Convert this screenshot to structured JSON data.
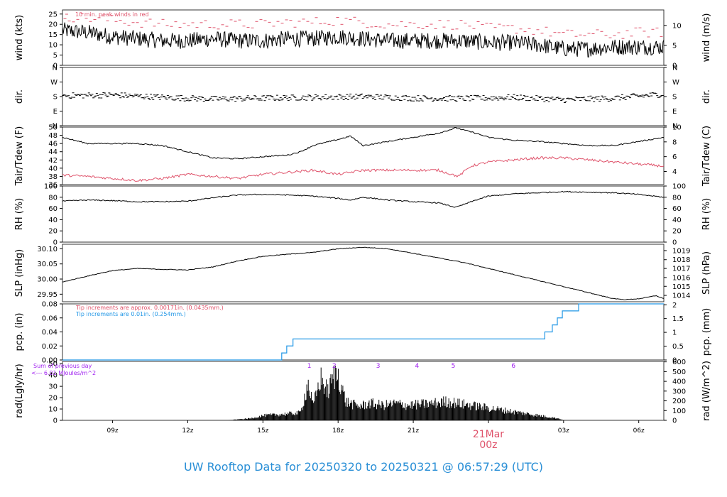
{
  "footer": "UW Rooftop Data for 20250320  to  20250321 @ 06:57:29  (UTC)",
  "colors": {
    "axis": "#333333",
    "series": "#000000",
    "red": "#df536b",
    "blue": "#2297e6",
    "purple": "#a020f0"
  },
  "time_axis": {
    "range": [
      7.0,
      31.0
    ],
    "ticks": [
      {
        "v": 9,
        "label": "09z"
      },
      {
        "v": 12,
        "label": "12z"
      },
      {
        "v": 15,
        "label": "15z"
      },
      {
        "v": 18,
        "label": "18z"
      },
      {
        "v": 21,
        "label": "21z"
      },
      {
        "v": 24,
        "label": ""
      },
      {
        "v": 27,
        "label": "03z"
      },
      {
        "v": 30,
        "label": "06z"
      }
    ],
    "date_label": {
      "v": 24,
      "line1": "21Mar",
      "line2": "00z"
    }
  },
  "chart_data": [
    {
      "id": "wind",
      "type": "line",
      "ylabel": "wind (kts)",
      "ylabel_right": "wind (m/s)",
      "ylim": [
        0,
        27
      ],
      "yticks": [
        0,
        5,
        10,
        15,
        20,
        25
      ],
      "yticks_right": [
        {
          "v": 0,
          "label": "0"
        },
        {
          "v": 9.72,
          "label": "5"
        },
        {
          "v": 19.44,
          "label": "10"
        }
      ],
      "annotation": "10 min. peak winds in red",
      "series": {
        "x": [
          7.0,
          8.0,
          9.0,
          10.0,
          11.0,
          12.0,
          13.0,
          14.0,
          15.0,
          16.0,
          17.0,
          18.0,
          19.0,
          20.0,
          21.0,
          22.0,
          23.0,
          24.0,
          25.0,
          26.0,
          27.0,
          28.0,
          29.0,
          30.0,
          31.0
        ],
        "y": [
          17,
          16,
          14,
          13,
          12,
          12,
          13,
          12,
          12,
          13,
          13,
          14,
          13,
          12,
          12,
          12,
          12,
          11,
          11,
          10,
          8,
          8,
          9,
          9,
          9
        ],
        "noise": 4
      },
      "peak": {
        "x": [
          7.0,
          8.0,
          9.0,
          10.0,
          11.0,
          12.0,
          13.0,
          14.0,
          15.0,
          16.0,
          17.0,
          18.0,
          19.0,
          20.0,
          21.0,
          22.0,
          23.0,
          24.0,
          25.0,
          26.0,
          27.0,
          28.0,
          29.0,
          30.0,
          31.0
        ],
        "y": [
          24,
          23,
          22,
          21,
          20,
          20,
          20,
          20,
          20,
          21,
          21,
          22,
          21,
          20,
          20,
          20,
          20,
          18,
          18,
          17,
          15,
          15,
          15,
          16,
          16
        ]
      }
    },
    {
      "id": "dir",
      "type": "scatter",
      "ylabel": "dir.",
      "ylabel_right": "dir.",
      "ylim": [
        0,
        360
      ],
      "ytick_labels": [
        {
          "v": 0,
          "label": "N"
        },
        {
          "v": 90,
          "label": "E"
        },
        {
          "v": 180,
          "label": "S"
        },
        {
          "v": 270,
          "label": "W"
        },
        {
          "v": 360,
          "label": "N"
        }
      ],
      "series": {
        "x": [
          7.0,
          9.0,
          11.0,
          13.0,
          15.0,
          17.0,
          19.0,
          21.0,
          23.0,
          25.0,
          27.0,
          29.0,
          31.0
        ],
        "y": [
          185,
          190,
          175,
          165,
          170,
          175,
          180,
          170,
          168,
          175,
          160,
          170,
          195
        ],
        "noise": 18
      }
    },
    {
      "id": "temp",
      "type": "line",
      "ylabel": "Tair/Tdew (F)",
      "ylabel_right": "Tair/Tdew (C)",
      "ylim": [
        36,
        50
      ],
      "yticks": [
        36,
        38,
        40,
        42,
        44,
        46,
        48,
        50
      ],
      "yticks_right": [
        {
          "v": 39.2,
          "label": "4"
        },
        {
          "v": 42.8,
          "label": "6"
        },
        {
          "v": 46.4,
          "label": "8"
        },
        {
          "v": 50.0,
          "label": "10"
        }
      ],
      "series": [
        {
          "color": "series",
          "x": [
            7.0,
            8.0,
            9.0,
            10.0,
            11.0,
            12.0,
            13.0,
            14.0,
            15.0,
            16.0,
            16.5,
            17.0,
            18.0,
            18.5,
            19.0,
            20.0,
            21.0,
            22.0,
            22.7,
            23.5,
            24.0,
            25.0,
            26.0,
            27.0,
            28.0,
            29.0,
            30.0,
            31.0
          ],
          "y": [
            47.5,
            46,
            46,
            46,
            45.5,
            44,
            42.5,
            42.3,
            42.8,
            43.2,
            44,
            45.5,
            47,
            47.8,
            45.5,
            46.5,
            47.5,
            48.5,
            49.8,
            48.5,
            47.5,
            46.8,
            46.5,
            46,
            45.5,
            45.5,
            46.5,
            47.5
          ],
          "noise": 0.15
        },
        {
          "color": "red",
          "x": [
            7.0,
            8.0,
            9.0,
            10.0,
            11.0,
            12.0,
            13.0,
            14.0,
            15.0,
            16.0,
            17.0,
            18.0,
            19.0,
            20.0,
            21.0,
            22.0,
            22.8,
            23.3,
            24.0,
            25.0,
            26.0,
            27.0,
            28.0,
            29.0,
            30.0,
            31.0
          ],
          "y": [
            38.3,
            38,
            37.5,
            37,
            37.5,
            38.5,
            38,
            37.5,
            38.5,
            39,
            39.5,
            38.5,
            39.5,
            39.5,
            39.5,
            39.5,
            38,
            40.5,
            41.5,
            42,
            42.5,
            42.5,
            42,
            41.5,
            41,
            40.5
          ],
          "noise": 0.3
        }
      ]
    },
    {
      "id": "rh",
      "type": "line",
      "ylabel": "RH (%)",
      "ylabel_right": "RH (%)",
      "ylim": [
        0,
        100
      ],
      "yticks": [
        0,
        20,
        40,
        60,
        80,
        100
      ],
      "series": {
        "x": [
          7.0,
          8.0,
          9.0,
          10.0,
          11.0,
          12.0,
          13.0,
          14.0,
          15.0,
          16.0,
          17.0,
          18.0,
          18.5,
          19.0,
          20.0,
          21.0,
          22.0,
          22.7,
          23.5,
          24.0,
          25.0,
          26.0,
          27.0,
          28.0,
          29.0,
          30.0,
          31.0
        ],
        "y": [
          73,
          75,
          74,
          72,
          72,
          73,
          79,
          84,
          85,
          84,
          82,
          78,
          75,
          80,
          75,
          72,
          70,
          62,
          75,
          82,
          86,
          88,
          90,
          89,
          88,
          85,
          80
        ],
        "noise": 1
      }
    },
    {
      "id": "slp",
      "type": "line",
      "ylabel": "SLP (inHg)",
      "ylabel_right": "SLP (hPa)",
      "ylim": [
        29.925,
        30.115
      ],
      "yticks": [
        29.95,
        30.0,
        30.05,
        30.1
      ],
      "yticks_right": [
        {
          "v": 29.946,
          "label": "1014"
        },
        {
          "v": 29.976,
          "label": "1015"
        },
        {
          "v": 30.005,
          "label": "1016"
        },
        {
          "v": 30.035,
          "label": "1017"
        },
        {
          "v": 30.064,
          "label": "1018"
        },
        {
          "v": 30.094,
          "label": "1019"
        }
      ],
      "series": {
        "x": [
          7.0,
          8.0,
          9.0,
          10.0,
          11.0,
          12.0,
          13.0,
          14.0,
          15.0,
          16.0,
          17.0,
          18.0,
          19.0,
          20.0,
          21.0,
          22.0,
          23.0,
          24.0,
          25.0,
          26.0,
          27.0,
          28.0,
          29.0,
          29.5,
          30.0,
          30.7,
          31.0
        ],
        "y": [
          29.99,
          30.01,
          30.028,
          30.035,
          30.032,
          30.03,
          30.04,
          30.06,
          30.075,
          30.082,
          30.088,
          30.1,
          30.105,
          30.1,
          30.085,
          30.07,
          30.055,
          30.035,
          30.015,
          29.995,
          29.975,
          29.955,
          29.935,
          29.932,
          29.935,
          29.945,
          29.935
        ],
        "noise": 0.001
      }
    },
    {
      "id": "pcp",
      "type": "line",
      "ylabel": "pcp. (in)",
      "ylabel_right": "pcp. (mm)",
      "ylim": [
        0,
        0.08
      ],
      "yticks": [
        0.0,
        0.02,
        0.04,
        0.06,
        0.08
      ],
      "yticks_right": [
        {
          "v": 0,
          "label": "0"
        },
        {
          "v": 0.0197,
          "label": "0.5"
        },
        {
          "v": 0.0394,
          "label": "1"
        },
        {
          "v": 0.0591,
          "label": "1.5"
        },
        {
          "v": 0.0787,
          "label": "2"
        }
      ],
      "notes": [
        {
          "text": "Tip increments are approx. 0.00171in. (0.0435mm.)",
          "color": "red"
        },
        {
          "text": "Tip increments are 0.01in. (0.254mm.)",
          "color": "blue"
        }
      ],
      "series": {
        "color": "blue",
        "steps": [
          [
            7.0,
            0
          ],
          [
            15.75,
            0.01
          ],
          [
            15.95,
            0.02
          ],
          [
            16.2,
            0.03
          ],
          [
            26.25,
            0.04
          ],
          [
            26.55,
            0.05
          ],
          [
            26.75,
            0.06
          ],
          [
            26.95,
            0.07
          ],
          [
            27.6,
            0.08
          ],
          [
            31.0,
            0.08
          ]
        ]
      }
    },
    {
      "id": "rad",
      "type": "bar",
      "ylabel": "rad(Lgly/hr)",
      "ylabel_right": "rad (W/m^2)",
      "ylim": [
        0,
        52
      ],
      "yticks": [
        0,
        10,
        20,
        30,
        40,
        50
      ],
      "yticks_right": [
        {
          "v": 0,
          "label": "0"
        },
        {
          "v": 8.6,
          "label": "100"
        },
        {
          "v": 17.2,
          "label": "200"
        },
        {
          "v": 25.8,
          "label": "300"
        },
        {
          "v": 34.4,
          "label": "400"
        },
        {
          "v": 43.0,
          "label": "500"
        },
        {
          "v": 51.6,
          "label": "600"
        }
      ],
      "note": {
        "line1": "Sum of previous day",
        "line2": "<--- 6.01 MJoules/m^2",
        "color": "purple"
      },
      "hour_marks": [
        {
          "v": 16.85,
          "label": "1"
        },
        {
          "v": 17.85,
          "label": "2"
        },
        {
          "v": 19.6,
          "label": "3"
        },
        {
          "v": 21.15,
          "label": "4"
        },
        {
          "v": 22.6,
          "label": "5"
        },
        {
          "v": 25.0,
          "label": "6"
        }
      ],
      "envelope": {
        "x": [
          13.6,
          14.0,
          14.5,
          15.0,
          15.5,
          16.0,
          16.5,
          16.8,
          17.0,
          17.3,
          17.6,
          17.8,
          18.0,
          18.3,
          18.8,
          19.3,
          19.8,
          20.3,
          20.8,
          21.3,
          21.8,
          22.3,
          22.8,
          23.3,
          23.8,
          24.3,
          24.8,
          25.3,
          25.8,
          26.3,
          26.8,
          27.0
        ],
        "y": [
          0,
          1,
          2,
          5,
          6,
          7,
          8,
          40,
          15,
          45,
          30,
          46,
          50,
          20,
          15,
          18,
          16,
          18,
          16,
          17,
          18,
          20,
          18,
          16,
          14,
          12,
          10,
          8,
          6,
          4,
          2,
          0
        ]
      }
    }
  ]
}
